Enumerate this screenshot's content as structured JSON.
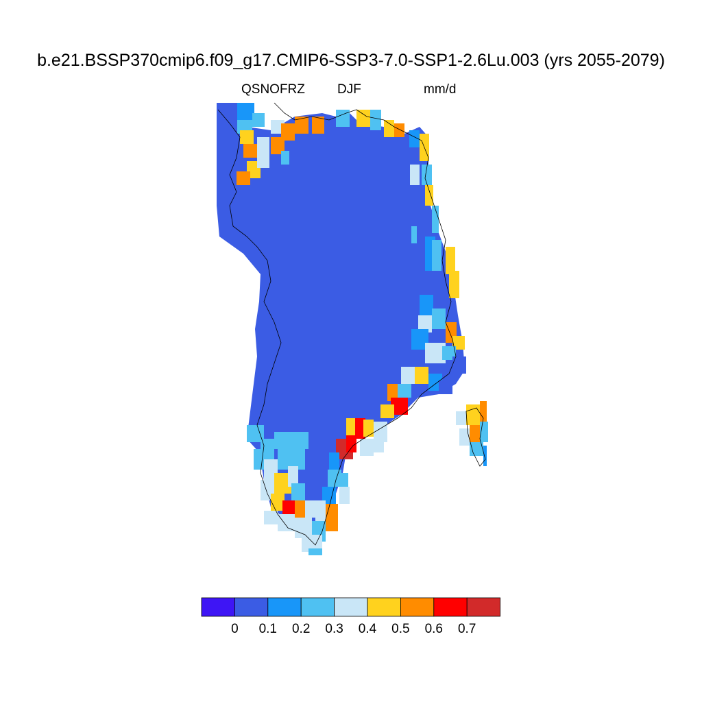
{
  "title": "b.e21.BSSP370cmip6.f09_g17.CMIP6-SSP3-7.0-SSP1-2.6Lu.003 (yrs 2055-2079)",
  "subtitle": {
    "variable": "QSNOFRZ",
    "season": "DJF",
    "units": "mm/d"
  },
  "colorbar": {
    "colors": [
      "#3e15f5",
      "#3b5ce4",
      "#1896f9",
      "#4fc1f2",
      "#c9e6f7",
      "#ffd21e",
      "#ff8c00",
      "#ff0000",
      "#d22a2a"
    ],
    "labels": [
      "0",
      "0.1",
      "0.2",
      "0.3",
      "0.4",
      "0.5",
      "0.6",
      "0.7"
    ]
  },
  "map": {
    "region": "Greenland",
    "interior_color": "#3b5ce4",
    "coastline": true
  }
}
